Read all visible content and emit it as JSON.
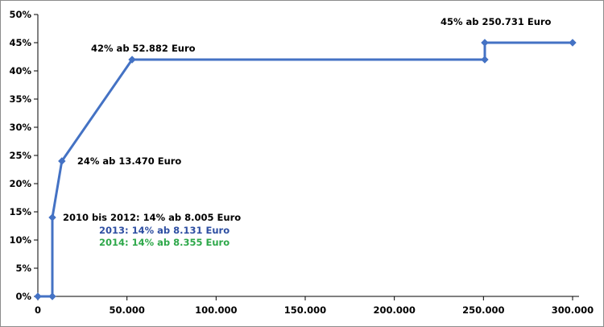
{
  "chart_data": {
    "type": "line",
    "title": "",
    "xlabel": "",
    "ylabel": "",
    "xlim": [
      0,
      300000
    ],
    "ylim": [
      0,
      50
    ],
    "x_ticks": [
      0,
      50000,
      100000,
      150000,
      200000,
      250000,
      300000
    ],
    "x_tick_labels": [
      "0",
      "50.000",
      "100.000",
      "150.000",
      "200.000",
      "250.000",
      "300.000"
    ],
    "y_ticks": [
      0,
      5,
      10,
      15,
      20,
      25,
      30,
      35,
      40,
      45,
      50
    ],
    "y_tick_labels": [
      "0%",
      "5%",
      "10%",
      "15%",
      "20%",
      "25%",
      "30%",
      "35%",
      "40%",
      "45%",
      "50%"
    ],
    "grid": false,
    "legend": false,
    "series": [
      {
        "color": "#4472C4",
        "x": [
          0,
          8131,
          8131,
          13470,
          52882,
          250731,
          250731,
          300000
        ],
        "y": [
          0,
          0,
          14,
          24,
          42,
          42,
          45,
          45
        ]
      }
    ],
    "annotations": [
      {
        "text": "45% ab 250.731  Euro",
        "x": 250731,
        "y": 45,
        "color": "#000000"
      },
      {
        "text": "42% ab 52.882  Euro",
        "x": 52882,
        "y": 42,
        "color": "#000000"
      },
      {
        "text": "24% ab 13.470  Euro",
        "x": 13470,
        "y": 24,
        "color": "#000000"
      },
      {
        "text": "2010 bis 2012: 14% ab 8.005  Euro",
        "x": 8131,
        "y": 14,
        "color": "#000000"
      },
      {
        "text": "2013: 14% ab 8.131  Euro",
        "x": 8131,
        "y": 14,
        "color": "#2E4FA2"
      },
      {
        "text": "2014: 14% ab 8.355  Euro",
        "x": 8131,
        "y": 14,
        "color": "#2EA84A"
      }
    ],
    "axis_color": "#000000",
    "line_color": "#4472C4"
  }
}
